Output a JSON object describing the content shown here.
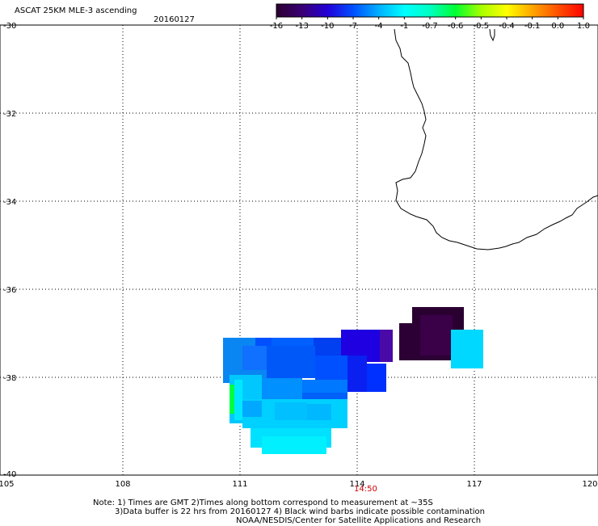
{
  "title": "ASCAT 25KM MLE-3 ascending",
  "date": "20160127",
  "colorbar": {
    "labels": [
      "-16",
      "-13",
      "-10",
      "-7",
      "-4",
      "-1",
      "-0.7",
      "-0.6",
      "-0.5",
      "-0.4",
      "-0.1",
      "0.0",
      "1.0"
    ],
    "colors": [
      "#2a0030",
      "#3a0075",
      "#2200d8",
      "#0050ff",
      "#00b0ff",
      "#00ffff",
      "#00ffc0",
      "#00ff30",
      "#a8ff00",
      "#ffff00",
      "#ffa500",
      "#ff5000",
      "#ff0000"
    ]
  },
  "axes": {
    "lon_ticks": [
      "105",
      "108",
      "111",
      "114",
      "117",
      "120"
    ],
    "lat_ticks": [
      "-30",
      "-32",
      "-34",
      "-36",
      "-38",
      "-40"
    ]
  },
  "time_label": "14:50",
  "notes": [
    "Note: 1) Times are GMT 2)Times along bottom correspond to measurement at ~35S",
    "3)Data buffer is 22 hrs from 20160127 4) Black wind barbs indicate possible contamination",
    "NOAA/NESDIS/Center for Satellite Applications and Research"
  ]
}
